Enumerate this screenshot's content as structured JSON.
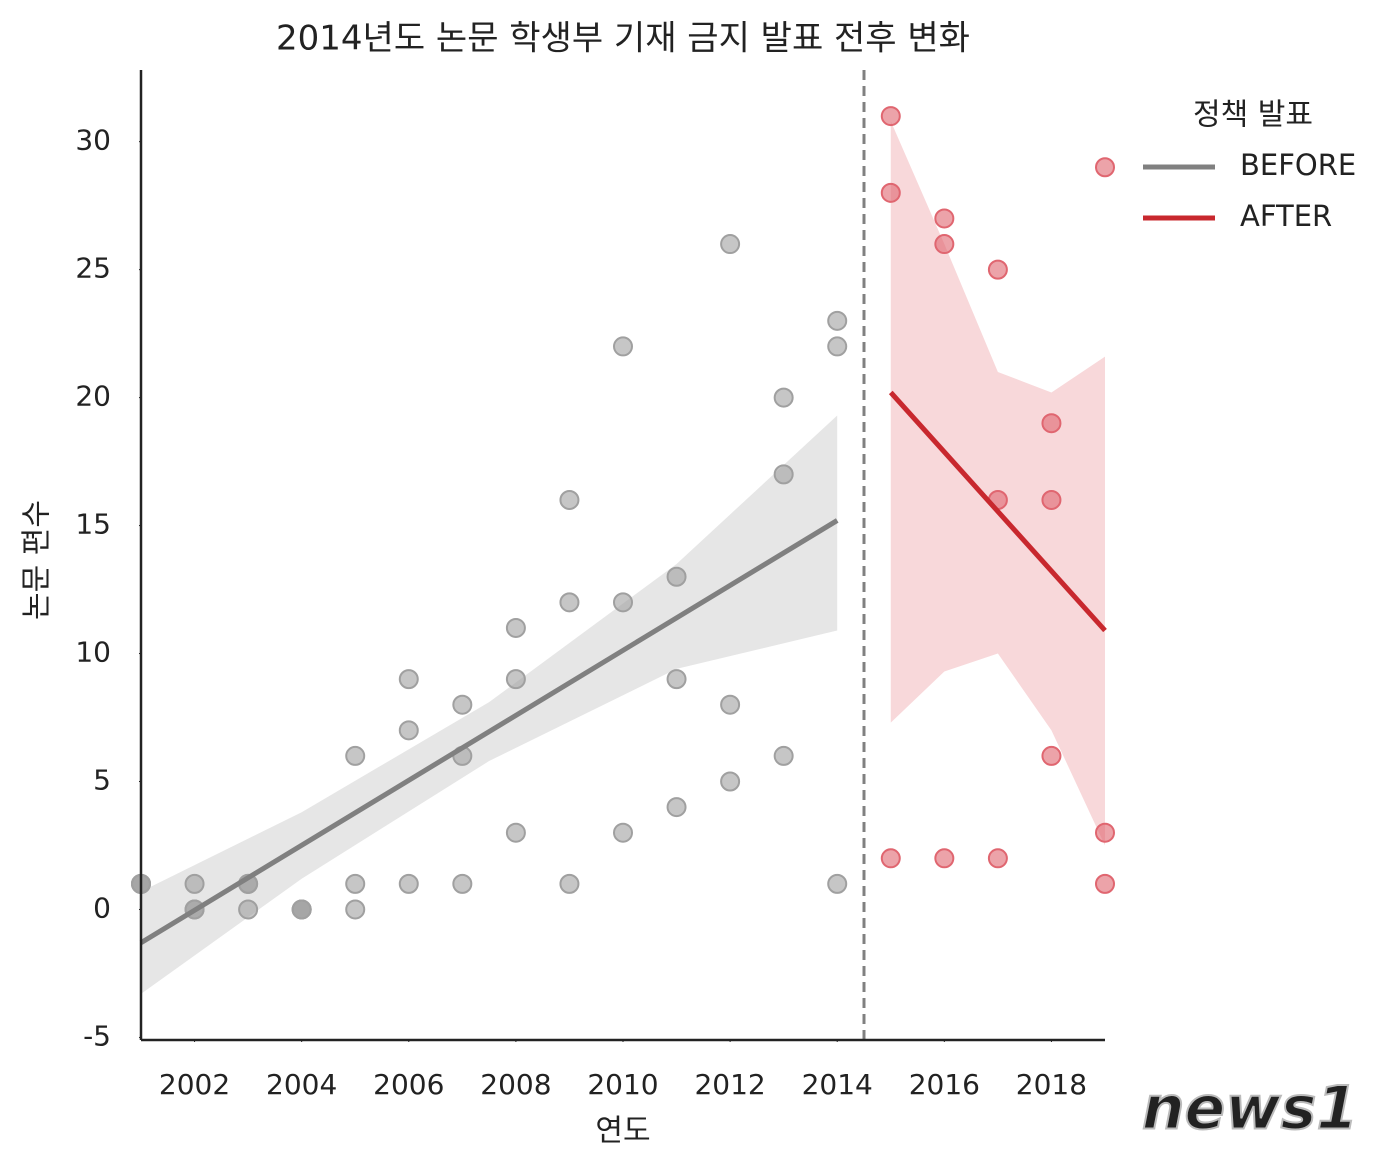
{
  "chart_data": {
    "type": "scatter",
    "title": "2014년도 논문 학생부 기재 금지 발표 전후 변화",
    "x_label": "연도",
    "y_label": "논문 편수",
    "legend_title": "정책 발표",
    "legend_position": "upper right outside",
    "watermark": "news1",
    "xlim": [
      2001,
      2019
    ],
    "xticks": [
      2002,
      2004,
      2006,
      2008,
      2010,
      2012,
      2014,
      2016,
      2018
    ],
    "ylim": [
      -5.1,
      32.8
    ],
    "yticks": [
      -5,
      0,
      5,
      10,
      15,
      20,
      25,
      30
    ],
    "divider_x": 2014.5,
    "series": [
      {
        "name": "BEFORE",
        "color": "#a0a0a0",
        "line_color": "#808080",
        "band_color": "#e6e6e6",
        "x": [
          2001,
          2001,
          2001,
          2002,
          2002,
          2002,
          2003,
          2003,
          2003,
          2004,
          2004,
          2004,
          2005,
          2005,
          2005,
          2006,
          2006,
          2006,
          2007,
          2007,
          2007,
          2008,
          2008,
          2008,
          2009,
          2009,
          2009,
          2010,
          2010,
          2010,
          2011,
          2011,
          2011,
          2012,
          2012,
          2012,
          2013,
          2013,
          2013,
          2014,
          2014,
          2014
        ],
        "values": [
          1,
          1,
          1,
          1,
          0,
          0,
          1,
          1,
          0,
          0,
          0,
          0,
          6,
          1,
          0,
          9,
          7,
          1,
          8,
          6,
          1,
          11,
          9,
          3,
          16,
          12,
          1,
          22,
          12,
          3,
          13,
          9,
          4,
          26,
          8,
          5,
          20,
          17,
          6,
          23,
          22,
          1
        ],
        "line_x": [
          2001,
          2014
        ],
        "line_y": [
          -1.3,
          15.2
        ],
        "band_x": [
          2001,
          2004,
          2007.5,
          2011,
          2014
        ],
        "band_lower": [
          -3.3,
          1.2,
          5.8,
          9.4,
          10.9
        ],
        "band_upper": [
          0.7,
          3.8,
          8.1,
          13.5,
          19.3
        ]
      },
      {
        "name": "AFTER",
        "color": "#e06670",
        "line_color": "#c8282e",
        "band_color": "#f8d8da",
        "x": [
          2015,
          2015,
          2015,
          2016,
          2016,
          2016,
          2017,
          2017,
          2017,
          2018,
          2018,
          2018,
          2019,
          2019,
          2019
        ],
        "values": [
          31,
          28,
          2,
          27,
          26,
          2,
          25,
          16,
          2,
          19,
          16,
          6,
          29,
          3,
          1
        ],
        "line_x": [
          2015,
          2019
        ],
        "line_y": [
          20.2,
          10.9
        ],
        "band_x": [
          2015,
          2016,
          2017,
          2018,
          2019
        ],
        "band_lower": [
          7.3,
          9.3,
          10,
          7,
          2.5
        ],
        "band_upper": [
          30.8,
          26,
          21,
          20.2,
          21.6
        ]
      }
    ]
  }
}
